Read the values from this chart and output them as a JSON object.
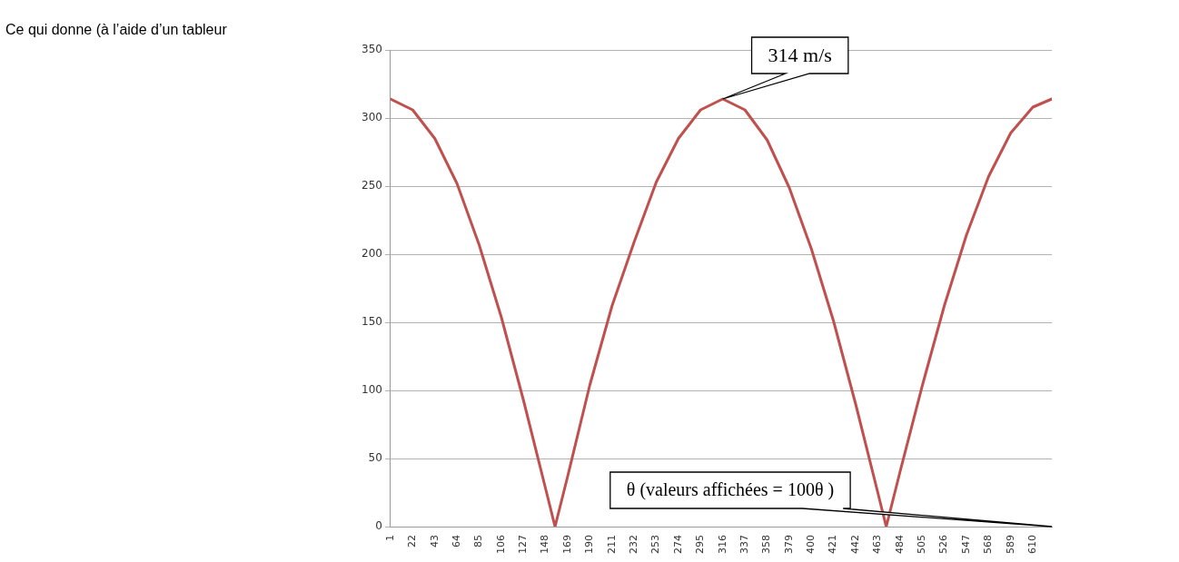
{
  "chart_data": {
    "type": "line",
    "xlabel": "θ (valeurs affichées = 100θ )",
    "annotations": [
      "Ce qui donne (à l’aide d’un tableur",
      {
        "text": "314 m/s",
        "x": 316,
        "y": 314
      }
    ],
    "x": [
      1,
      22,
      43,
      64,
      85,
      106,
      127,
      148,
      157,
      169,
      190,
      211,
      232,
      253,
      274,
      295,
      316,
      337,
      358,
      379,
      400,
      421,
      442,
      463,
      471,
      484,
      505,
      526,
      547,
      568,
      589,
      610,
      628
    ],
    "series": [
      {
        "color": "#c0504d",
        "values": [
          314,
          306,
          285,
          252,
          207,
          154,
          93,
          28,
          0,
          37,
          104,
          162,
          209,
          253,
          285,
          306,
          314,
          306,
          284,
          249,
          204,
          151,
          90,
          25,
          0,
          40,
          103,
          162,
          214,
          257,
          289,
          308,
          314
        ]
      }
    ],
    "xlim": [
      1,
      628
    ],
    "xticks": [
      1,
      22,
      43,
      64,
      85,
      106,
      127,
      148,
      169,
      190,
      211,
      232,
      253,
      274,
      295,
      316,
      337,
      358,
      379,
      400,
      421,
      442,
      463,
      484,
      505,
      526,
      547,
      568,
      589,
      610
    ],
    "ylim": [
      0,
      350
    ],
    "yticks": [
      0,
      50,
      100,
      150,
      200,
      250,
      300,
      350
    ],
    "grid": "y",
    "legend": false,
    "marker": "none",
    "line_style": "solid"
  }
}
